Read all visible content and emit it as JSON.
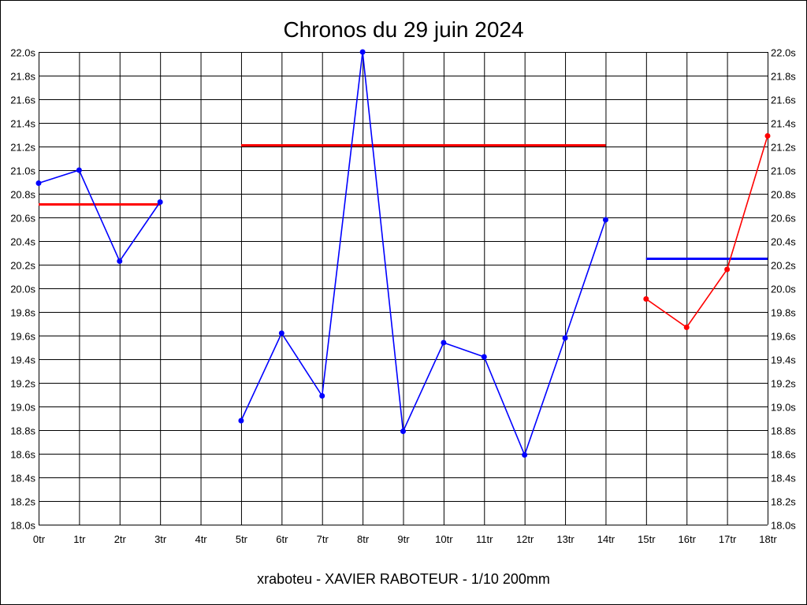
{
  "chart_data": {
    "type": "line",
    "title": "Chronos du 29 juin 2024",
    "footer": "xraboteu - XAVIER RABOTEUR - 1/10 200mm",
    "xlabel": "",
    "ylabel": "",
    "ylim": [
      18.0,
      22.0
    ],
    "y_ticks": [
      "18.0s",
      "18.2s",
      "18.4s",
      "18.6s",
      "18.8s",
      "19.0s",
      "19.2s",
      "19.4s",
      "19.6s",
      "19.8s",
      "20.0s",
      "20.2s",
      "20.4s",
      "20.6s",
      "20.8s",
      "21.0s",
      "21.2s",
      "21.4s",
      "21.6s",
      "21.8s",
      "22.0s"
    ],
    "y_tick_values": [
      18.0,
      18.2,
      18.4,
      18.6,
      18.8,
      19.0,
      19.2,
      19.4,
      19.6,
      19.8,
      20.0,
      20.2,
      20.4,
      20.6,
      20.8,
      21.0,
      21.2,
      21.4,
      21.6,
      21.8,
      22.0
    ],
    "x_ticks": [
      "0tr",
      "1tr",
      "2tr",
      "3tr",
      "4tr",
      "5tr",
      "6tr",
      "7tr",
      "8tr",
      "9tr",
      "10tr",
      "11tr",
      "12tr",
      "13tr",
      "14tr",
      "15tr",
      "16tr",
      "17tr",
      "18tr"
    ],
    "grid": true,
    "right_axis": true,
    "series": [
      {
        "color": "#0000ff",
        "x": [
          0,
          1,
          2,
          3
        ],
        "values": [
          20.89,
          21.0,
          20.23,
          20.73
        ]
      },
      {
        "color": "#0000ff",
        "x": [
          5,
          6,
          7,
          8,
          9,
          10,
          11,
          12,
          13,
          14
        ],
        "values": [
          18.88,
          19.62,
          19.09,
          22.0,
          18.79,
          19.54,
          19.42,
          18.59,
          19.58,
          20.58
        ]
      },
      {
        "color": "#ff0000",
        "x": [
          15,
          16,
          17,
          18
        ],
        "values": [
          19.91,
          19.67,
          20.16,
          21.29
        ]
      }
    ],
    "averages": [
      {
        "color": "#ff0000",
        "x_from": 0,
        "x_to": 3,
        "value": 20.71
      },
      {
        "color": "#ff0000",
        "x_from": 5,
        "x_to": 14,
        "value": 21.21
      },
      {
        "color": "#0000ff",
        "x_from": 15,
        "x_to": 18,
        "value": 20.25
      }
    ]
  }
}
